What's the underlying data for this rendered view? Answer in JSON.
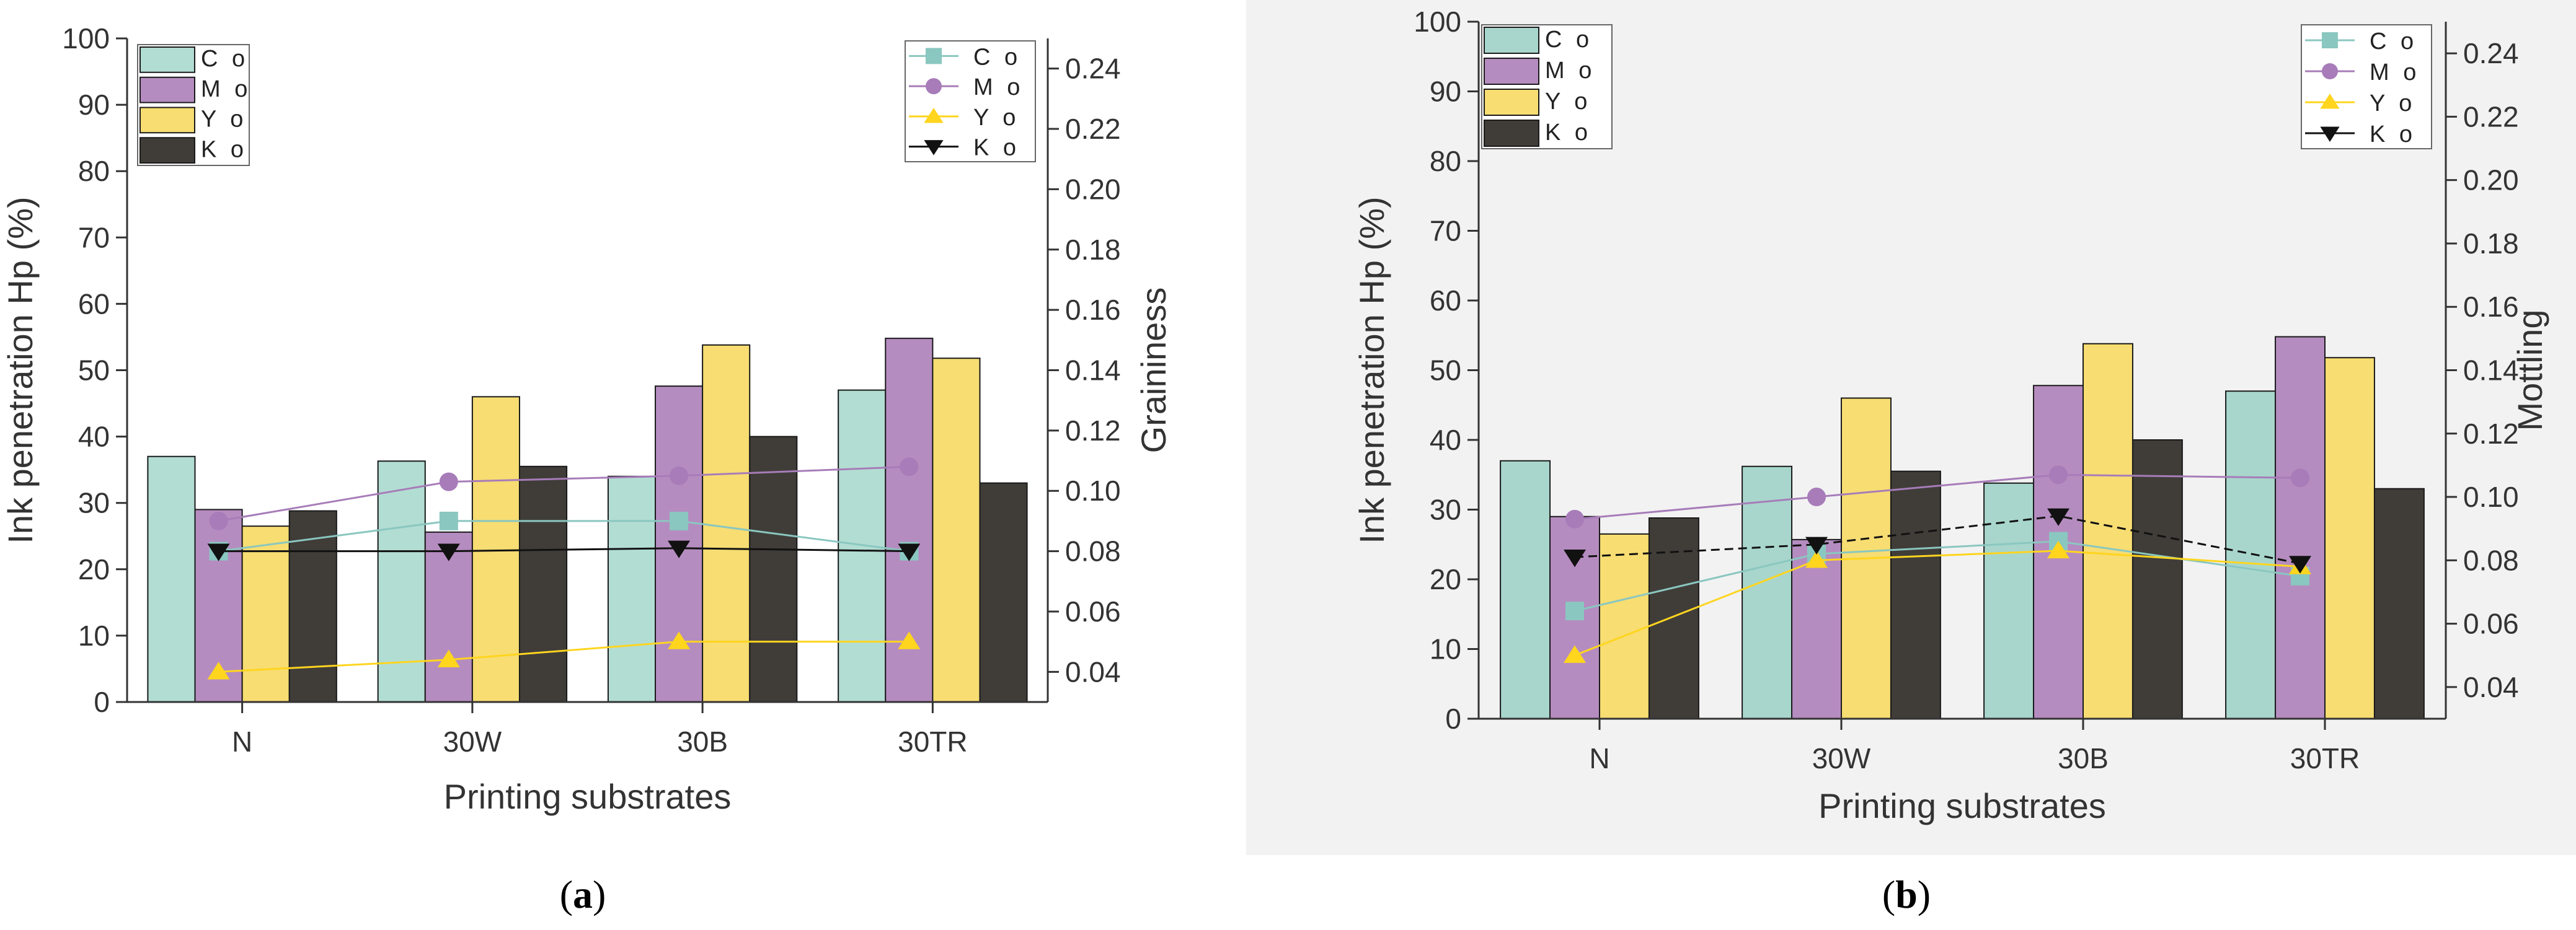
{
  "chart_data": [
    {
      "panel": "(a)",
      "panel_letter": "a",
      "type": "bar",
      "categories": [
        "N",
        "30W",
        "30B",
        "30TR"
      ],
      "xlabel": "Printing substrates",
      "ylabel": "Ink penetration Hp (%)",
      "ylim": [
        0,
        100
      ],
      "yticks": [
        0,
        10,
        20,
        30,
        40,
        50,
        60,
        70,
        80,
        90,
        100
      ],
      "y2label": "Graininess",
      "y2lim": [
        0.03,
        0.25
      ],
      "y2ticks": [
        0.04,
        0.06,
        0.08,
        0.1,
        0.12,
        0.14,
        0.16,
        0.18,
        0.2,
        0.22,
        0.24
      ],
      "y2tick_labels": [
        "0.04",
        "0.06",
        "0.08",
        "0.10",
        "0.12",
        "0.14",
        "0.16",
        "0.18",
        "0.20",
        "0.22",
        "0.24"
      ],
      "bar_series": [
        {
          "name": "C o",
          "color": "#b2ddd3",
          "values": [
            37,
            36.3,
            34,
            47
          ]
        },
        {
          "name": "M o",
          "color": "#b58cc0",
          "values": [
            29,
            25.6,
            47.6,
            54.8
          ]
        },
        {
          "name": "Y o",
          "color": "#f7dd72",
          "values": [
            26.5,
            46,
            53.8,
            51.8
          ]
        },
        {
          "name": "K o",
          "color": "#403d39",
          "values": [
            28.8,
            35.5,
            40,
            33
          ]
        }
      ],
      "line_series": [
        {
          "name": "C o",
          "color": "#8ac7c0",
          "marker": "square",
          "values": [
            0.08,
            0.09,
            0.09,
            0.08
          ]
        },
        {
          "name": "M o",
          "color": "#a77cb9",
          "marker": "circle",
          "values": [
            0.09,
            0.103,
            0.105,
            0.108
          ]
        },
        {
          "name": "Y o",
          "color": "#ffd51e",
          "marker": "triangle-up",
          "values": [
            0.04,
            0.044,
            0.05,
            0.05
          ]
        },
        {
          "name": "K o",
          "color": "#111111",
          "marker": "triangle-down",
          "values": [
            0.08,
            0.08,
            0.081,
            0.08
          ]
        }
      ]
    },
    {
      "panel": "(b)",
      "panel_letter": "b",
      "type": "bar",
      "categories": [
        "N",
        "30W",
        "30B",
        "30TR"
      ],
      "xlabel": "Printing substrates",
      "ylabel": "Ink penetration Hp (%)",
      "ylim": [
        0,
        100
      ],
      "yticks": [
        0,
        10,
        20,
        30,
        40,
        50,
        60,
        70,
        80,
        90,
        100
      ],
      "y2label": "Mottling",
      "y2lim": [
        0.03,
        0.25
      ],
      "y2ticks": [
        0.04,
        0.06,
        0.08,
        0.1,
        0.12,
        0.14,
        0.16,
        0.18,
        0.2,
        0.22,
        0.24
      ],
      "y2tick_labels": [
        "0.04",
        "0.06",
        "0.08",
        "0.10",
        "0.12",
        "0.14",
        "0.16",
        "0.18",
        "0.20",
        "0.22",
        "0.24"
      ],
      "bar_series": [
        {
          "name": "C o",
          "color": "#a8d6cc",
          "values": [
            37,
            36.2,
            33.8,
            47
          ]
        },
        {
          "name": "M o",
          "color": "#b58cc0",
          "values": [
            29,
            25.7,
            47.8,
            54.8
          ]
        },
        {
          "name": "Y o",
          "color": "#f7dd72",
          "values": [
            26.5,
            46,
            53.8,
            51.8
          ]
        },
        {
          "name": "K o",
          "color": "#403d39",
          "values": [
            28.8,
            35.5,
            40,
            33
          ]
        }
      ],
      "line_series": [
        {
          "name": "C o",
          "color": "#8ac7c0",
          "marker": "square",
          "values": [
            0.064,
            0.082,
            0.086,
            0.075
          ]
        },
        {
          "name": "M o",
          "color": "#a77cb9",
          "marker": "circle",
          "values": [
            0.093,
            0.1,
            0.107,
            0.106
          ]
        },
        {
          "name": "Y o",
          "color": "#ffd51e",
          "marker": "triangle-up",
          "values": [
            0.05,
            0.08,
            0.083,
            0.078
          ]
        },
        {
          "name": "K o",
          "color": "#111111",
          "marker": "triangle-down",
          "values": [
            0.081,
            0.085,
            0.094,
            0.079
          ]
        }
      ]
    }
  ]
}
